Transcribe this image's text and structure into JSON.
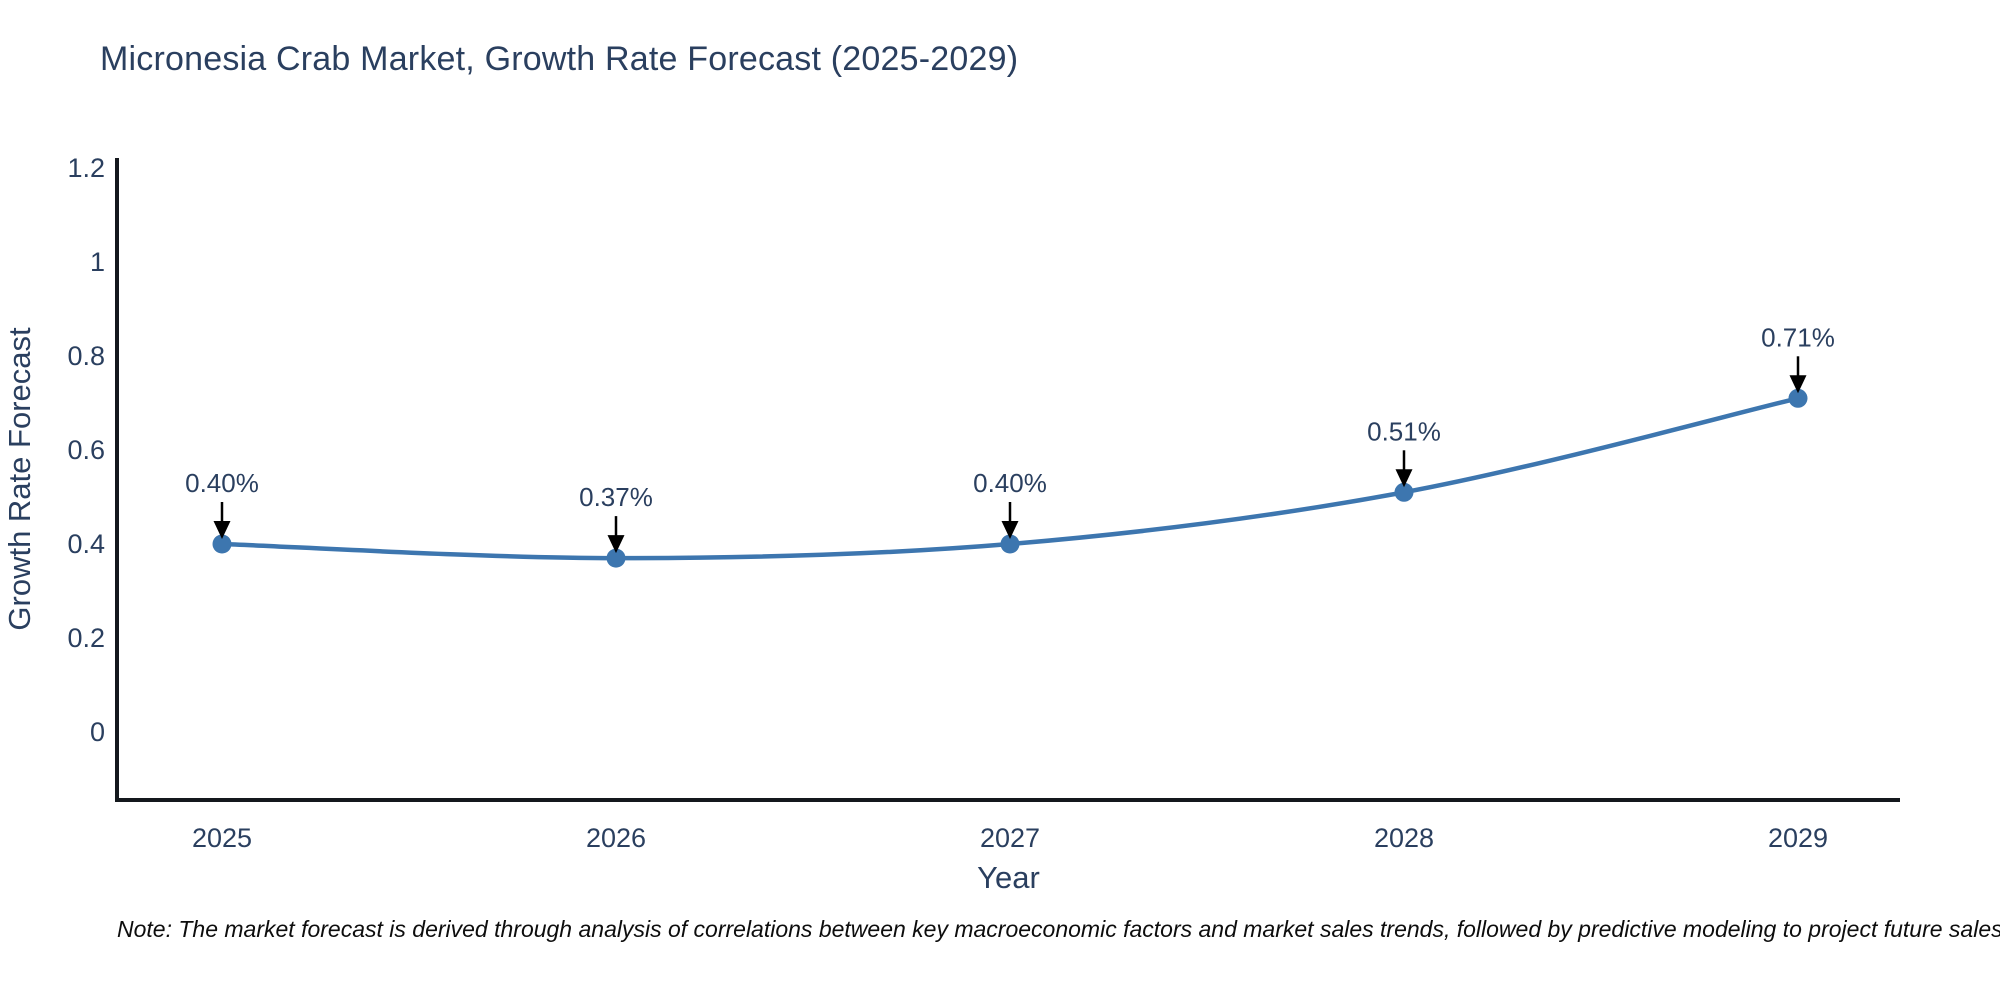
{
  "header": {
    "title": "Micronesia Crab Market, Growth Rate Forecast (2025-2029)"
  },
  "chart_data": {
    "type": "line",
    "title": "Micronesia Crab Market, Growth Rate Forecast (2025-2029)",
    "x": [
      "2025",
      "2026",
      "2027",
      "2028",
      "2029"
    ],
    "series": [
      {
        "name": "Growth Rate Forecast",
        "values": [
          0.4,
          0.37,
          0.4,
          0.51,
          0.71
        ]
      }
    ],
    "point_labels": [
      "0.40%",
      "0.37%",
      "0.40%",
      "0.51%",
      "0.71%"
    ],
    "xlabel": "Year",
    "ylabel": "Growth Rate Forecast",
    "y_ticks": [
      "0",
      "0.2",
      "0.4",
      "0.6",
      "0.8",
      "1",
      "1.2"
    ],
    "y_tick_values": [
      0,
      0.2,
      0.4,
      0.6,
      0.8,
      1.0,
      1.2
    ],
    "ylim": [
      -0.145,
      1.22
    ],
    "grid": false,
    "legend_position": "none",
    "line_shape": "spline",
    "colors": {
      "line": "#3d76af",
      "marker": "#3d76af",
      "text": "#2a3f5f",
      "axis": "#14181d",
      "annotation_text": "#2a3f5f",
      "annotation_arrow": "#000000"
    }
  },
  "footer": {
    "note": "Note: The market forecast is derived through analysis of correlations between key macroeconomic factors and market sales trends, followed by predictive modeling to project future sales"
  }
}
